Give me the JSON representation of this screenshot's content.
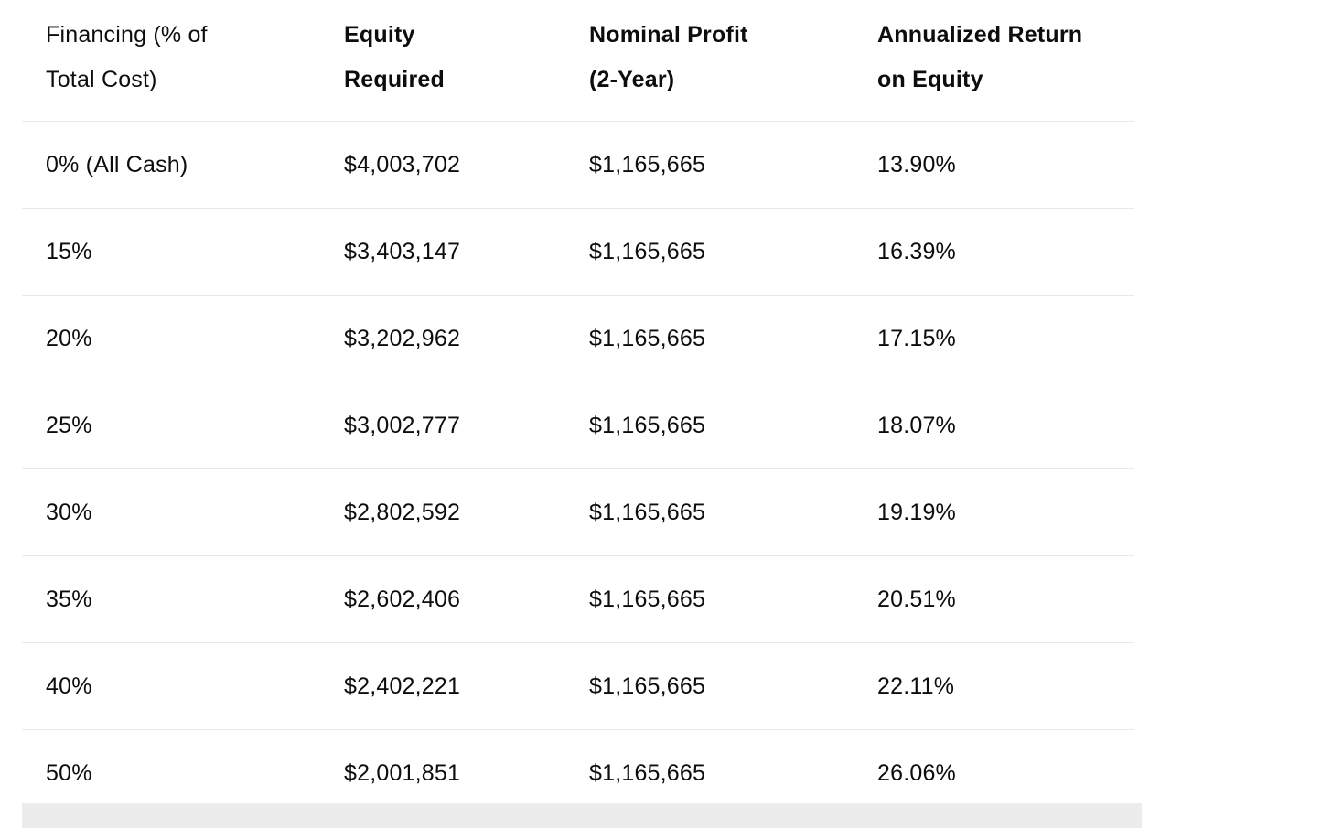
{
  "table": {
    "columns": [
      {
        "label": "Financing (% of\nTotal Cost)",
        "bold": false
      },
      {
        "label": "Equity\nRequired",
        "bold": true
      },
      {
        "label": "Nominal Profit\n(2-Year)",
        "bold": true
      },
      {
        "label": "Annualized Return\non Equity",
        "bold": true
      }
    ],
    "rows": [
      [
        "0% (All Cash)",
        "$4,003,702",
        "$1,165,665",
        "13.90%"
      ],
      [
        "15%",
        "$3,403,147",
        "$1,165,665",
        "16.39%"
      ],
      [
        "20%",
        "$3,202,962",
        "$1,165,665",
        "17.15%"
      ],
      [
        "25%",
        "$3,002,777",
        "$1,165,665",
        "18.07%"
      ],
      [
        "30%",
        "$2,802,592",
        "$1,165,665",
        "19.19%"
      ],
      [
        "35%",
        "$2,602,406",
        "$1,165,665",
        "20.51%"
      ],
      [
        "40%",
        "$2,402,221",
        "$1,165,665",
        "22.11%"
      ],
      [
        "50%",
        "$2,001,851",
        "$1,165,665",
        "26.06%"
      ]
    ]
  },
  "chart_data": {
    "type": "table",
    "title": "",
    "columns": [
      "Financing (% of Total Cost)",
      "Equity Required",
      "Nominal Profit (2-Year)",
      "Annualized Return on Equity"
    ],
    "rows": [
      {
        "financing_pct": "0% (All Cash)",
        "equity_required": 4003702,
        "nominal_profit_2yr": 1165665,
        "annualized_return_on_equity_pct": 13.9
      },
      {
        "financing_pct": "15%",
        "equity_required": 3403147,
        "nominal_profit_2yr": 1165665,
        "annualized_return_on_equity_pct": 16.39
      },
      {
        "financing_pct": "20%",
        "equity_required": 3202962,
        "nominal_profit_2yr": 1165665,
        "annualized_return_on_equity_pct": 17.15
      },
      {
        "financing_pct": "25%",
        "equity_required": 3002777,
        "nominal_profit_2yr": 1165665,
        "annualized_return_on_equity_pct": 18.07
      },
      {
        "financing_pct": "30%",
        "equity_required": 2802592,
        "nominal_profit_2yr": 1165665,
        "annualized_return_on_equity_pct": 19.19
      },
      {
        "financing_pct": "35%",
        "equity_required": 2602406,
        "nominal_profit_2yr": 1165665,
        "annualized_return_on_equity_pct": 20.51
      },
      {
        "financing_pct": "40%",
        "equity_required": 2402221,
        "nominal_profit_2yr": 1165665,
        "annualized_return_on_equity_pct": 22.11
      },
      {
        "financing_pct": "50%",
        "equity_required": 2001851,
        "nominal_profit_2yr": 1165665,
        "annualized_return_on_equity_pct": 26.06
      }
    ]
  },
  "colors": {
    "background": "#ffffff",
    "text": "#0d0d0d",
    "row_divider": "#e8e8e8",
    "below_band": "#ececec"
  }
}
